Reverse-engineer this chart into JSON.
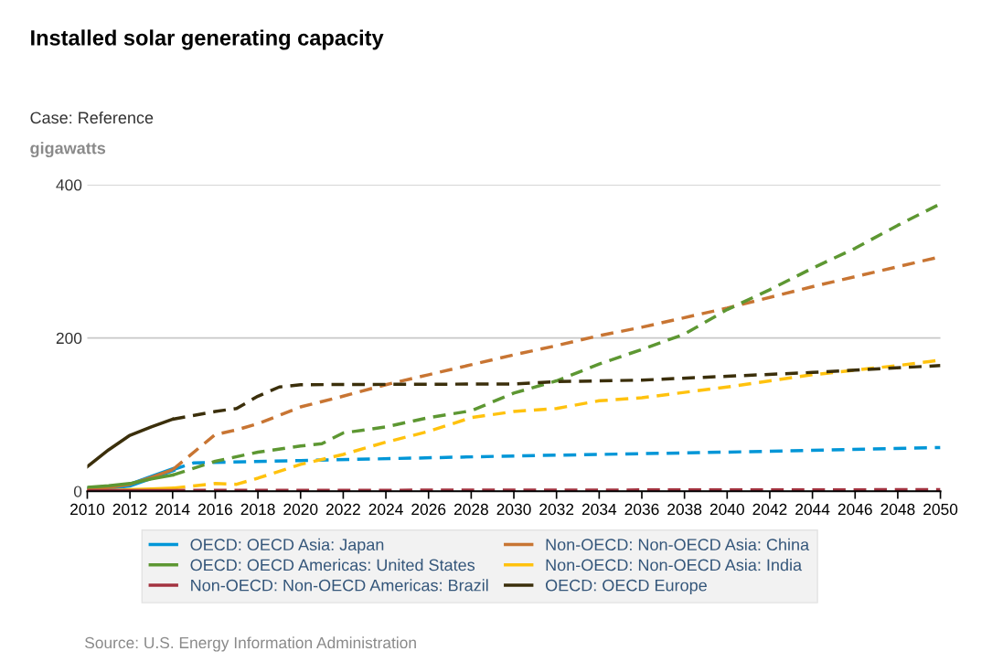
{
  "chart_data": {
    "type": "line",
    "title": "Installed solar generating capacity",
    "subtitle": "Case: Reference",
    "ylabel": "gigawatts",
    "annotations": [
      "Source: U.S. Energy Information Administration"
    ],
    "xlim": [
      2010,
      2050
    ],
    "xticks": [
      2010,
      2012,
      2014,
      2016,
      2018,
      2020,
      2022,
      2024,
      2026,
      2028,
      2030,
      2032,
      2034,
      2036,
      2038,
      2040,
      2042,
      2044,
      2046,
      2048,
      2050
    ],
    "ylim": [
      0,
      400
    ],
    "yticks": [
      0,
      200,
      400
    ],
    "grid": "y",
    "legend": "bottom",
    "marker": "none",
    "series": [
      {
        "name": "OECD: OECD Asia: Japan",
        "color": "#0096d7",
        "line_style": "solid",
        "x": [
          2010,
          2011,
          2012,
          2013,
          2014
        ],
        "values": [
          3,
          5,
          8,
          18,
          28
        ]
      },
      {
        "name": "Non-OECD: Non-OECD Asia: China",
        "color": "#c87533",
        "line_style": "solid",
        "x": [
          2010,
          2011,
          2012,
          2013,
          2014
        ],
        "values": [
          3,
          5,
          9,
          18,
          28
        ]
      },
      {
        "name": "OECD: OECD Americas: United States",
        "color": "#5d9732",
        "line_style": "solid",
        "x": [
          2010,
          2011,
          2012,
          2013,
          2014
        ],
        "values": [
          5,
          7,
          10,
          16,
          21
        ]
      },
      {
        "name": "Non-OECD: Non-OECD Asia: India",
        "color": "#ffc20e",
        "line_style": "solid",
        "x": [
          2010,
          2011,
          2012,
          2013,
          2014
        ],
        "values": [
          1,
          1,
          2,
          3,
          4
        ]
      },
      {
        "name": "Non-OECD: Non-OECD Americas: Brazil",
        "color": "#a33340",
        "line_style": "solid",
        "x": [
          2010,
          2011,
          2012,
          2013,
          2014
        ],
        "values": [
          1,
          1,
          1,
          1,
          1
        ]
      },
      {
        "name": "OECD: OECD Europe",
        "color": "#3b2f0b",
        "line_style": "solid",
        "x": [
          2010,
          2011,
          2012,
          2013,
          2014
        ],
        "values": [
          32,
          54,
          73,
          84,
          94
        ]
      },
      {
        "color": "#0096d7",
        "line_style": "dashed",
        "x": [
          2014,
          2015,
          2020,
          2030,
          2040,
          2050
        ],
        "values": [
          28,
          37,
          40,
          46,
          51,
          57
        ]
      },
      {
        "color": "#c87533",
        "line_style": "dashed",
        "x": [
          2014,
          2016,
          2017,
          2018,
          2020,
          2022,
          2024,
          2026,
          2028,
          2030,
          2032,
          2034,
          2036,
          2040,
          2044,
          2048,
          2050
        ],
        "values": [
          28,
          74,
          80,
          88,
          110,
          124,
          139,
          152,
          165,
          178,
          190,
          203,
          214,
          239,
          267,
          293,
          306
        ]
      },
      {
        "color": "#5d9732",
        "line_style": "dashed",
        "x": [
          2014,
          2016,
          2018,
          2020,
          2021,
          2022,
          2024,
          2026,
          2028,
          2030,
          2032,
          2034,
          2036,
          2038,
          2040,
          2042,
          2044,
          2046,
          2048,
          2050
        ],
        "values": [
          21,
          39,
          51,
          59,
          62,
          76,
          84,
          96,
          105,
          128,
          144,
          166,
          185,
          205,
          237,
          263,
          291,
          317,
          347,
          375
        ]
      },
      {
        "color": "#ffc20e",
        "line_style": "dashed",
        "x": [
          2014,
          2016,
          2017,
          2018,
          2020,
          2022,
          2024,
          2026,
          2028,
          2030,
          2032,
          2034,
          2036,
          2040,
          2044,
          2048,
          2050
        ],
        "values": [
          4,
          10,
          9,
          17,
          35,
          48,
          64,
          78,
          96,
          104,
          108,
          118,
          122,
          136,
          152,
          164,
          171
        ]
      },
      {
        "color": "#a33340",
        "line_style": "dashed",
        "x": [
          2014,
          2050
        ],
        "values": [
          1,
          2
        ]
      },
      {
        "color": "#3b2f0b",
        "line_style": "dashed",
        "x": [
          2014,
          2016,
          2017,
          2018,
          2019,
          2020,
          2030,
          2032,
          2036,
          2040,
          2044,
          2050
        ],
        "values": [
          94,
          104,
          108,
          124,
          136,
          139,
          140,
          143,
          145,
          150,
          155,
          164
        ]
      }
    ]
  }
}
